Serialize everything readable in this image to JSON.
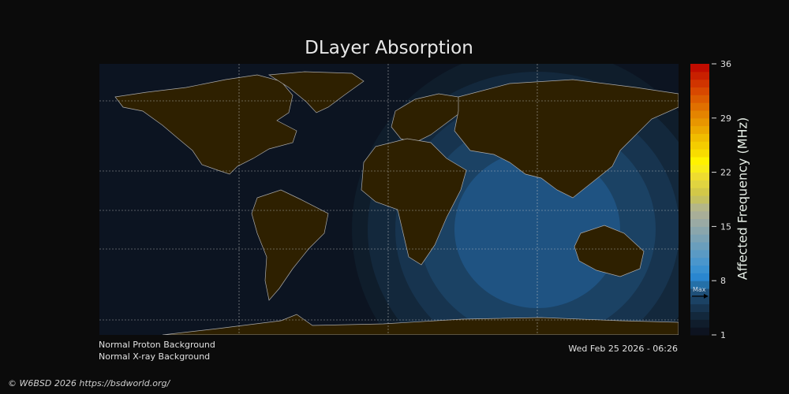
{
  "title": "DLayer Absorption",
  "status": {
    "proton": "Normal Proton Background",
    "xray": "Normal X-ray Background"
  },
  "timestamp": "Wed Feb 25 2026 - 06:26",
  "copyright": "© W6BSD 2026 https://bsdworld.org/",
  "colorbar": {
    "label": "Affected Frequency (MHz)",
    "min": 1,
    "max": 36,
    "ticks": [
      "36",
      "29",
      "22",
      "15",
      "8",
      "1"
    ],
    "max_marker_label": "Max",
    "max_marker_value": 6,
    "colors": [
      "#0d1320",
      "#101d2c",
      "#13283c",
      "#17344f",
      "#1b4264",
      "#1f5079",
      "#2470a8",
      "#2a86cf",
      "#3990d0",
      "#4a96cc",
      "#5a9ac4",
      "#6a9ebc",
      "#7aa2b4",
      "#8aa6ac",
      "#9aaaa4",
      "#a8ae98",
      "#b4b688",
      "#c4c060",
      "#d2c848",
      "#e0d440",
      "#eedc30",
      "#f8ec18",
      "#fff200",
      "#f8dc00",
      "#f4cc00",
      "#f0bc00",
      "#eca800",
      "#e89600",
      "#e48400",
      "#e07000",
      "#dc5c00",
      "#d84800",
      "#d03400",
      "#c82000",
      "#c00c00"
    ]
  },
  "map": {
    "land_color": "#2e2000",
    "ocean_color": "#0c1421",
    "absorption_levels_mhz": [
      2,
      3,
      4,
      5,
      6
    ],
    "absorption_colors": [
      "#0f1d2b",
      "#13283c",
      "#17344f",
      "#1b4264",
      "#1f5382"
    ]
  }
}
